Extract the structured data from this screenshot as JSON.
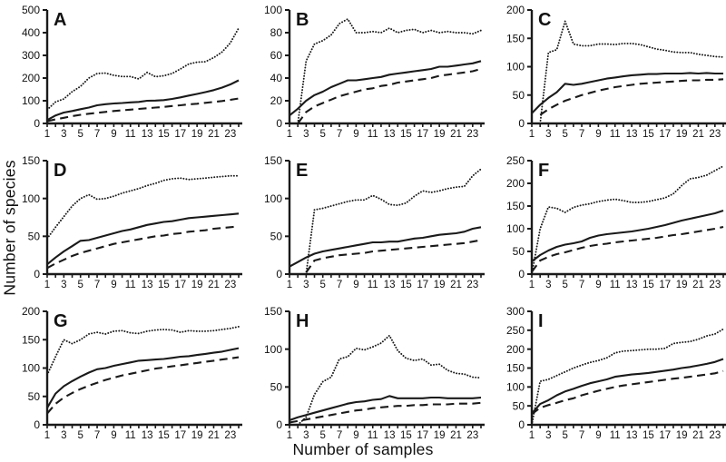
{
  "figure": {
    "ylabel": "Number of species",
    "xlabel": "Number of samples",
    "line_color": "#1a1a1a",
    "text_color": "#111111",
    "background": "#ffffff"
  },
  "chart_data": [
    {
      "type": "line",
      "panel": "A",
      "x_range": [
        1,
        24
      ],
      "xticks": [
        1,
        3,
        5,
        7,
        9,
        11,
        13,
        15,
        17,
        19,
        21,
        23
      ],
      "ylim": [
        0,
        500
      ],
      "yticks": [
        0,
        100,
        200,
        300,
        400,
        500
      ],
      "grid": false,
      "legend": "none",
      "series": [
        {
          "name": "dotted-upper-curve",
          "style": "dotted",
          "values": [
            60,
            95,
            108,
            140,
            163,
            200,
            220,
            222,
            212,
            207,
            207,
            196,
            225,
            206,
            210,
            220,
            240,
            262,
            270,
            272,
            290,
            315,
            355,
            420
          ]
        },
        {
          "name": "solid-middle-curve",
          "style": "solid",
          "values": [
            15,
            35,
            48,
            55,
            63,
            70,
            80,
            85,
            88,
            90,
            93,
            95,
            100,
            101,
            103,
            108,
            115,
            123,
            130,
            138,
            147,
            158,
            172,
            190
          ]
        },
        {
          "name": "dashed-lower-curve",
          "style": "dashed",
          "values": [
            10,
            18,
            25,
            32,
            38,
            43,
            47,
            51,
            55,
            58,
            61,
            64,
            67,
            70,
            73,
            77,
            80,
            84,
            87,
            91,
            95,
            99,
            104,
            110
          ]
        }
      ]
    },
    {
      "type": "line",
      "panel": "B",
      "x_range": [
        1,
        24
      ],
      "xticks": [
        1,
        3,
        5,
        7,
        9,
        11,
        13,
        15,
        17,
        19,
        21,
        23
      ],
      "ylim": [
        0,
        100
      ],
      "yticks": [
        0,
        20,
        40,
        60,
        80,
        100
      ],
      "grid": false,
      "legend": "none",
      "series": [
        {
          "name": "dotted-upper-curve",
          "style": "dotted",
          "values": [
            null,
            0,
            55,
            70,
            73,
            78,
            88,
            92,
            80,
            80,
            81,
            80,
            84,
            80,
            82,
            83,
            80,
            82,
            80,
            81,
            80,
            80,
            79,
            82
          ]
        },
        {
          "name": "solid-middle-curve",
          "style": "solid",
          "values": [
            7,
            13,
            20,
            25,
            28,
            32,
            35,
            38,
            38,
            39,
            40,
            41,
            43,
            44,
            45,
            46,
            47,
            48,
            50,
            50,
            51,
            52,
            53,
            55
          ]
        },
        {
          "name": "dashed-lower-curve",
          "style": "dashed",
          "values": [
            null,
            0,
            10,
            15,
            18,
            21,
            24,
            26,
            28,
            30,
            31,
            33,
            34,
            36,
            37,
            38,
            39,
            40,
            42,
            43,
            44,
            45,
            46,
            48
          ]
        }
      ]
    },
    {
      "type": "line",
      "panel": "C",
      "x_range": [
        1,
        24
      ],
      "xticks": [
        1,
        3,
        5,
        7,
        9,
        11,
        13,
        15,
        17,
        19,
        21,
        23
      ],
      "ylim": [
        0,
        200
      ],
      "yticks": [
        0,
        50,
        100,
        150,
        200
      ],
      "grid": false,
      "legend": "none",
      "series": [
        {
          "name": "dotted-upper-curve",
          "style": "dotted",
          "values": [
            null,
            0,
            125,
            130,
            180,
            140,
            137,
            137,
            140,
            140,
            139,
            141,
            141,
            139,
            135,
            131,
            129,
            126,
            125,
            125,
            122,
            120,
            118,
            117
          ]
        },
        {
          "name": "solid-middle-curve",
          "style": "solid",
          "values": [
            18,
            33,
            45,
            55,
            70,
            68,
            70,
            73,
            76,
            79,
            81,
            83,
            85,
            86,
            87,
            87,
            88,
            88,
            88,
            89,
            88,
            89,
            88,
            88
          ]
        },
        {
          "name": "dashed-lower-curve",
          "style": "dashed",
          "values": [
            null,
            15,
            25,
            33,
            40,
            45,
            50,
            54,
            58,
            61,
            64,
            66,
            68,
            70,
            71,
            72,
            73,
            74,
            75,
            76,
            76,
            77,
            77,
            78
          ]
        }
      ]
    },
    {
      "type": "line",
      "panel": "D",
      "x_range": [
        1,
        24
      ],
      "xticks": [
        1,
        3,
        5,
        7,
        9,
        11,
        13,
        15,
        17,
        19,
        21,
        23
      ],
      "ylim": [
        0,
        150
      ],
      "yticks": [
        0,
        50,
        100,
        150
      ],
      "grid": false,
      "legend": "none",
      "series": [
        {
          "name": "dotted-upper-curve",
          "style": "dotted",
          "values": [
            47,
            62,
            76,
            90,
            100,
            105,
            99,
            100,
            103,
            107,
            110,
            113,
            117,
            120,
            124,
            126,
            127,
            125,
            126,
            127,
            128,
            129,
            130,
            130
          ]
        },
        {
          "name": "solid-middle-curve",
          "style": "solid",
          "values": [
            13,
            22,
            30,
            37,
            44,
            45,
            48,
            51,
            54,
            57,
            59,
            62,
            65,
            67,
            69,
            70,
            72,
            74,
            75,
            76,
            77,
            78,
            79,
            80
          ]
        },
        {
          "name": "dashed-lower-curve",
          "style": "dashed",
          "values": [
            8,
            14,
            19,
            24,
            28,
            31,
            34,
            37,
            40,
            42,
            44,
            46,
            48,
            50,
            51,
            53,
            54,
            56,
            57,
            58,
            60,
            61,
            62,
            63
          ]
        }
      ]
    },
    {
      "type": "line",
      "panel": "E",
      "x_range": [
        1,
        24
      ],
      "xticks": [
        1,
        3,
        5,
        7,
        9,
        11,
        13,
        15,
        17,
        19,
        21,
        23
      ],
      "ylim": [
        0,
        150
      ],
      "yticks": [
        0,
        50,
        100,
        150
      ],
      "grid": false,
      "legend": "none",
      "series": [
        {
          "name": "dotted-upper-curve",
          "style": "dotted",
          "values": [
            null,
            null,
            0,
            85,
            87,
            90,
            93,
            96,
            98,
            98,
            104,
            99,
            92,
            91,
            94,
            103,
            110,
            108,
            110,
            113,
            115,
            116,
            130,
            139
          ]
        },
        {
          "name": "solid-middle-curve",
          "style": "solid",
          "values": [
            10,
            16,
            22,
            27,
            30,
            32,
            34,
            36,
            38,
            40,
            42,
            42,
            43,
            43,
            45,
            47,
            48,
            50,
            52,
            53,
            54,
            56,
            60,
            62
          ]
        },
        {
          "name": "dashed-lower-curve",
          "style": "dashed",
          "values": [
            null,
            null,
            2,
            18,
            21,
            23,
            25,
            26,
            27,
            28,
            30,
            31,
            32,
            33,
            34,
            35,
            36,
            37,
            38,
            39,
            40,
            41,
            43,
            45
          ]
        }
      ]
    },
    {
      "type": "line",
      "panel": "F",
      "x_range": [
        1,
        24
      ],
      "xticks": [
        1,
        3,
        5,
        7,
        9,
        11,
        13,
        15,
        17,
        19,
        21,
        23
      ],
      "ylim": [
        0,
        250
      ],
      "yticks": [
        0,
        50,
        100,
        150,
        200,
        250
      ],
      "grid": false,
      "legend": "none",
      "series": [
        {
          "name": "dotted-upper-curve",
          "style": "dotted",
          "values": [
            0,
            100,
            148,
            145,
            136,
            147,
            152,
            155,
            160,
            163,
            165,
            162,
            158,
            158,
            160,
            164,
            168,
            177,
            195,
            210,
            213,
            218,
            228,
            238
          ]
        },
        {
          "name": "solid-middle-curve",
          "style": "solid",
          "values": [
            28,
            42,
            52,
            60,
            65,
            68,
            72,
            80,
            85,
            88,
            90,
            92,
            94,
            97,
            100,
            104,
            108,
            113,
            118,
            122,
            126,
            130,
            134,
            140
          ]
        },
        {
          "name": "dashed-lower-curve",
          "style": "dashed",
          "values": [
            5,
            30,
            38,
            44,
            48,
            53,
            58,
            62,
            65,
            67,
            70,
            72,
            74,
            76,
            78,
            80,
            83,
            86,
            88,
            91,
            94,
            97,
            100,
            104
          ]
        }
      ]
    },
    {
      "type": "line",
      "panel": "G",
      "x_range": [
        1,
        24
      ],
      "xticks": [
        1,
        3,
        5,
        7,
        9,
        11,
        13,
        15,
        17,
        19,
        21,
        23
      ],
      "ylim": [
        0,
        200
      ],
      "yticks": [
        0,
        50,
        100,
        150,
        200
      ],
      "grid": false,
      "legend": "none",
      "series": [
        {
          "name": "dotted-upper-curve",
          "style": "dotted",
          "values": [
            88,
            120,
            150,
            143,
            150,
            160,
            163,
            160,
            165,
            166,
            162,
            161,
            165,
            167,
            168,
            167,
            163,
            166,
            165,
            165,
            166,
            168,
            170,
            173
          ]
        },
        {
          "name": "solid-middle-curve",
          "style": "solid",
          "values": [
            30,
            55,
            68,
            77,
            85,
            92,
            98,
            100,
            104,
            107,
            110,
            113,
            114,
            115,
            116,
            118,
            120,
            121,
            123,
            125,
            127,
            129,
            132,
            135
          ]
        },
        {
          "name": "dashed-lower-curve",
          "style": "dashed",
          "values": [
            20,
            37,
            48,
            56,
            63,
            69,
            74,
            79,
            83,
            87,
            90,
            93,
            96,
            99,
            101,
            103,
            105,
            107,
            109,
            111,
            113,
            115,
            117,
            119
          ]
        }
      ]
    },
    {
      "type": "line",
      "panel": "H",
      "x_range": [
        1,
        24
      ],
      "xticks": [
        1,
        3,
        5,
        7,
        9,
        11,
        13,
        15,
        17,
        19,
        21,
        23
      ],
      "ylim": [
        0,
        150
      ],
      "yticks": [
        0,
        50,
        100,
        150
      ],
      "grid": false,
      "legend": "none",
      "series": [
        {
          "name": "dotted-upper-curve",
          "style": "dotted",
          "values": [
            null,
            0,
            10,
            40,
            57,
            63,
            87,
            90,
            101,
            99,
            103,
            108,
            118,
            98,
            88,
            85,
            87,
            79,
            80,
            72,
            68,
            67,
            63,
            62
          ]
        },
        {
          "name": "solid-middle-curve",
          "style": "solid",
          "values": [
            6,
            10,
            13,
            16,
            19,
            22,
            25,
            28,
            30,
            31,
            33,
            34,
            38,
            35,
            35,
            35,
            35,
            36,
            36,
            35,
            35,
            35,
            35,
            36
          ]
        },
        {
          "name": "dashed-lower-curve",
          "style": "dashed",
          "values": [
            3,
            5,
            7,
            9,
            11,
            13,
            15,
            17,
            19,
            20,
            22,
            23,
            24,
            25,
            25,
            26,
            26,
            27,
            27,
            27,
            28,
            28,
            28,
            29
          ]
        }
      ]
    },
    {
      "type": "line",
      "panel": "I",
      "x_range": [
        1,
        24
      ],
      "xticks": [
        1,
        3,
        5,
        7,
        9,
        11,
        13,
        15,
        17,
        19,
        21,
        23
      ],
      "ylim": [
        0,
        300
      ],
      "yticks": [
        0,
        50,
        100,
        150,
        200,
        250,
        300
      ],
      "grid": false,
      "legend": "none",
      "series": [
        {
          "name": "dotted-upper-curve",
          "style": "dotted",
          "values": [
            0,
            115,
            120,
            130,
            140,
            150,
            158,
            165,
            170,
            177,
            190,
            195,
            196,
            198,
            200,
            200,
            202,
            215,
            218,
            220,
            226,
            235,
            240,
            253
          ]
        },
        {
          "name": "solid-middle-curve",
          "style": "solid",
          "values": [
            30,
            55,
            65,
            78,
            88,
            95,
            103,
            110,
            115,
            120,
            127,
            130,
            133,
            135,
            137,
            140,
            143,
            146,
            150,
            153,
            157,
            161,
            166,
            174
          ]
        },
        {
          "name": "dashed-lower-curve",
          "style": "dashed",
          "values": [
            28,
            45,
            52,
            58,
            65,
            70,
            78,
            84,
            90,
            95,
            100,
            104,
            107,
            110,
            113,
            116,
            119,
            122,
            124,
            127,
            130,
            133,
            136,
            142
          ]
        }
      ]
    }
  ]
}
